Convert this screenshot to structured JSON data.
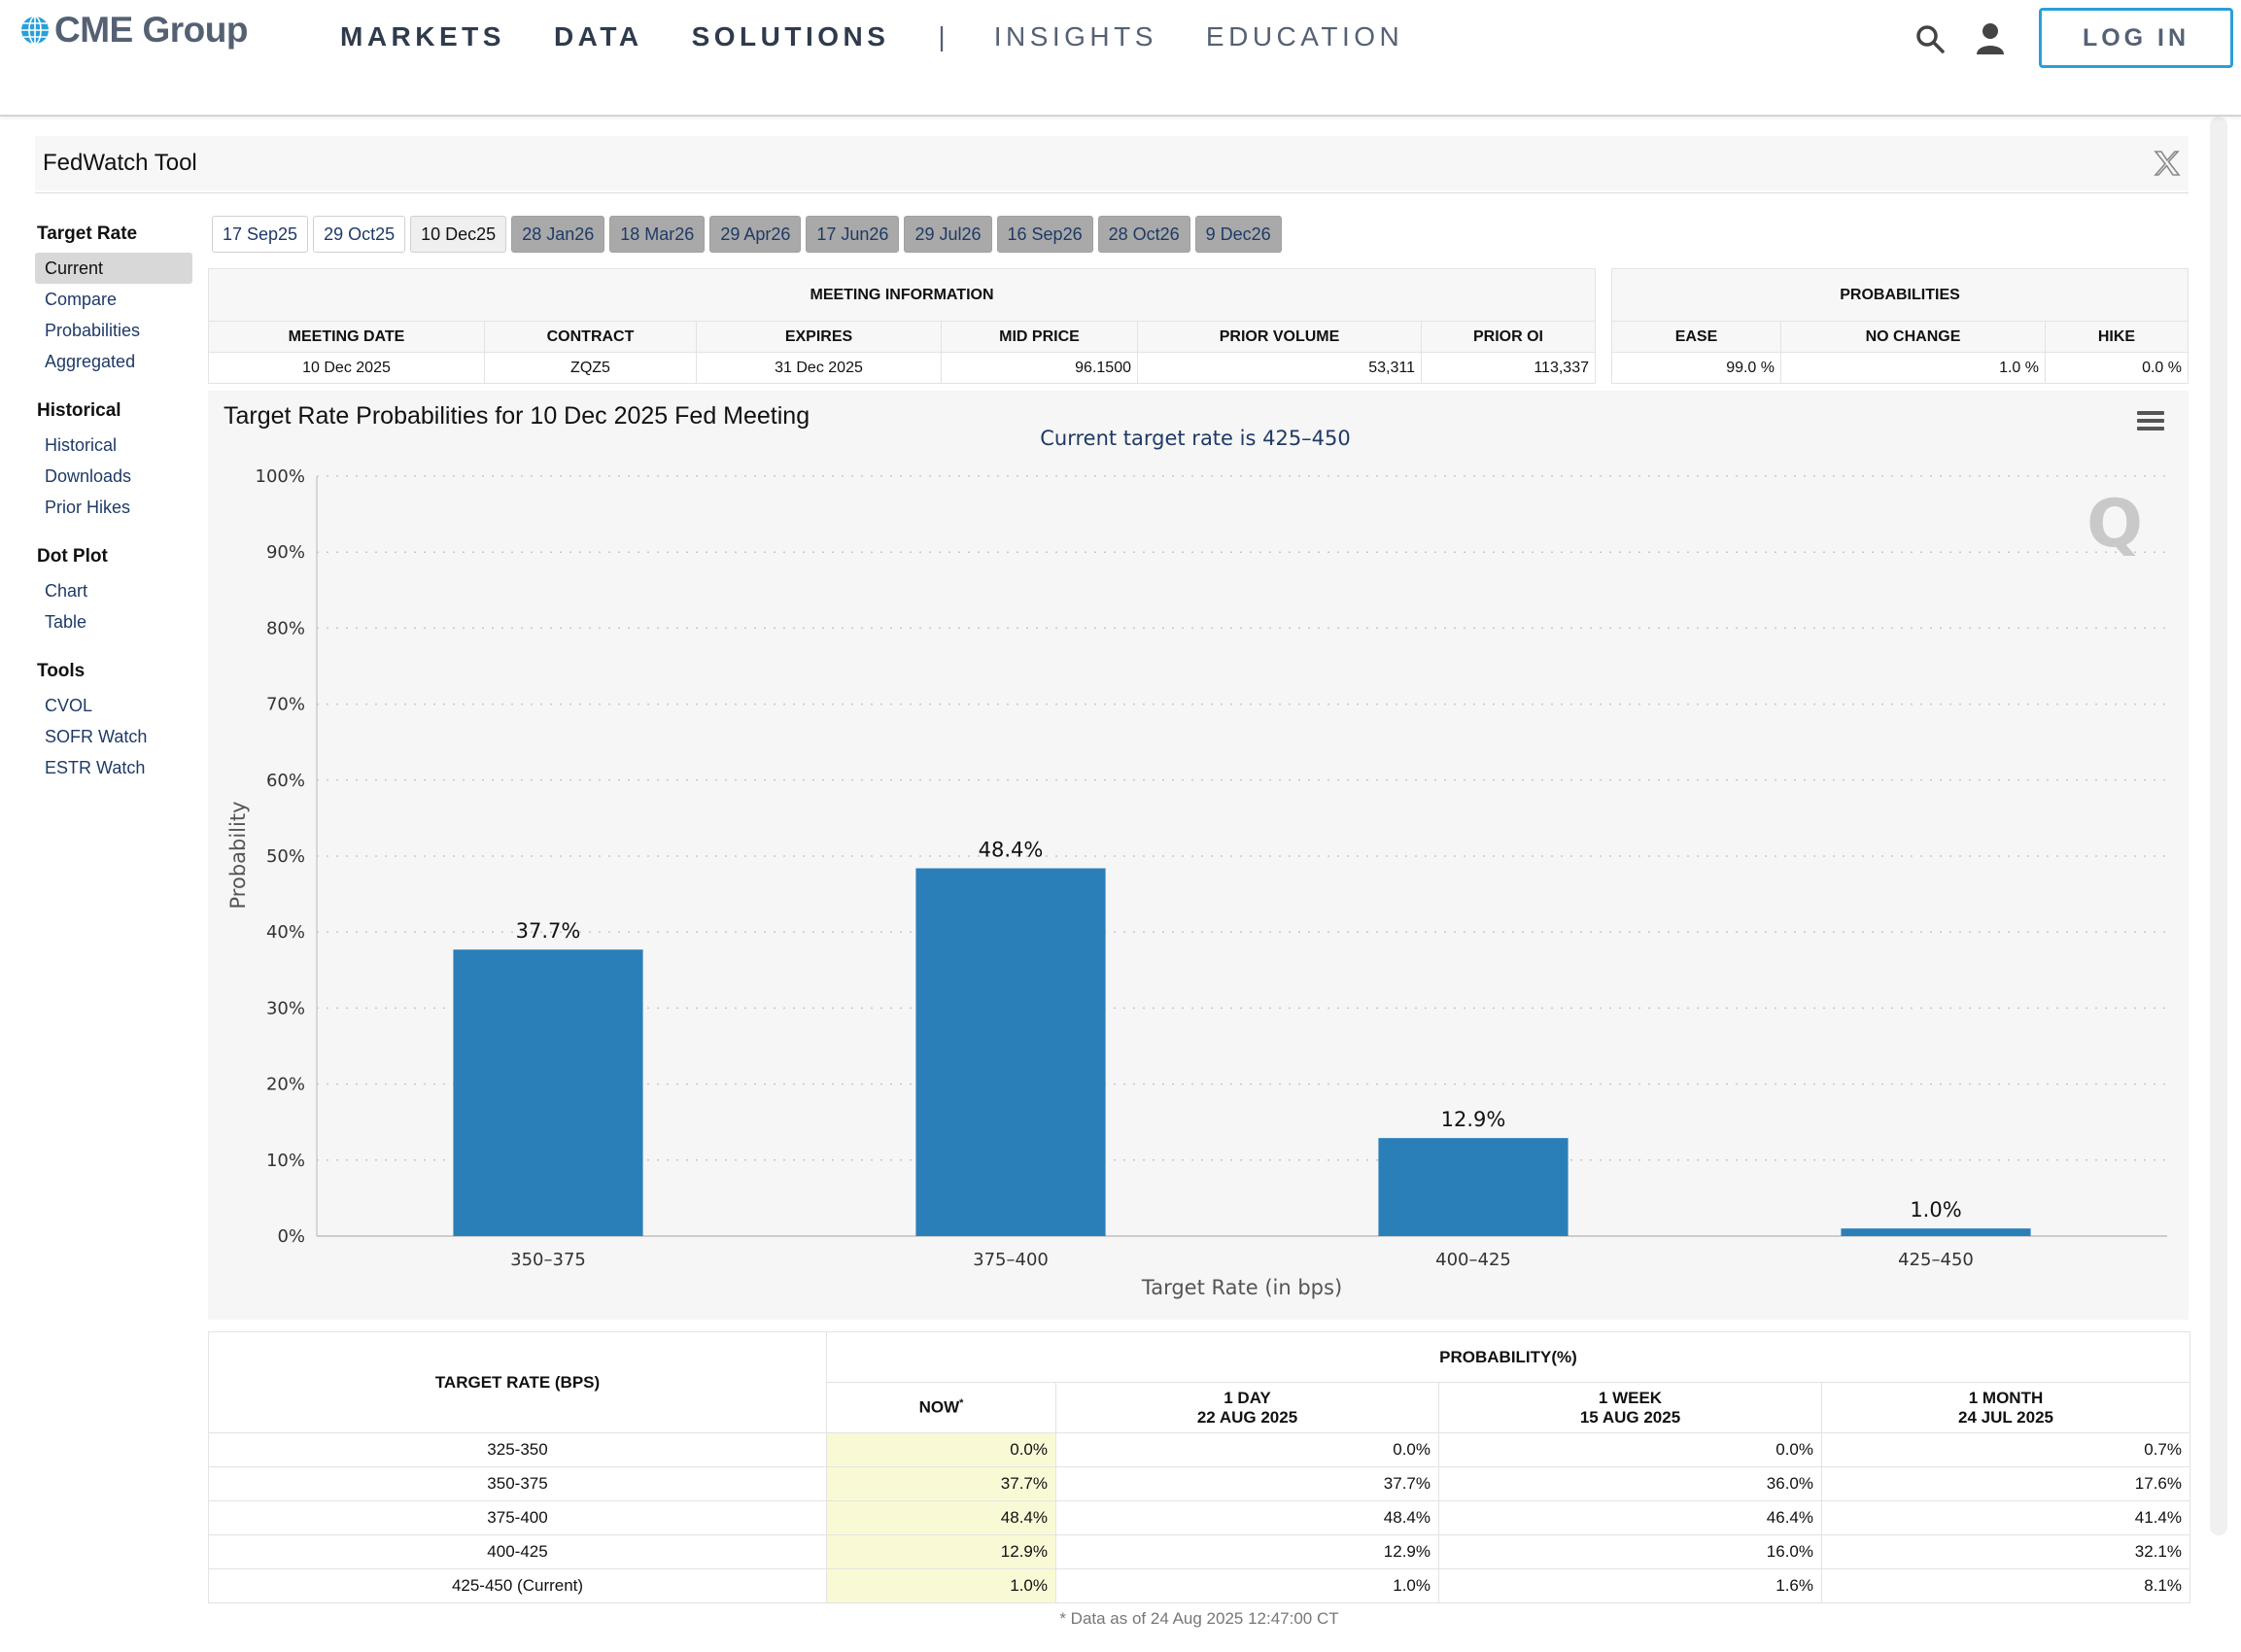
{
  "header": {
    "brand": "CME Group",
    "nav": [
      "MARKETS",
      "DATA",
      "SOLUTIONS",
      "|",
      "INSIGHTS",
      "EDUCATION"
    ],
    "login_label": "LOG IN",
    "colors": {
      "accent": "#2a9fd8",
      "brand": "#556173"
    }
  },
  "tool": {
    "title": "FedWatch Tool"
  },
  "sidebar": {
    "groups": [
      {
        "title": "Target Rate",
        "items": [
          "Current",
          "Compare",
          "Probabilities",
          "Aggregated"
        ]
      },
      {
        "title": "Historical",
        "items": [
          "Historical",
          "Downloads",
          "Prior Hikes"
        ]
      },
      {
        "title": "Dot Plot",
        "items": [
          "Chart",
          "Table"
        ]
      },
      {
        "title": "Tools",
        "items": [
          "CVOL",
          "SOFR Watch",
          "ESTR Watch"
        ]
      }
    ],
    "active": "Current"
  },
  "tabs": [
    "17 Sep25",
    "29 Oct25",
    "10 Dec25",
    "28 Jan26",
    "18 Mar26",
    "29 Apr26",
    "17 Jun26",
    "29 Jul26",
    "16 Sep26",
    "28 Oct26",
    "9 Dec26"
  ],
  "meeting_info": {
    "title": "MEETING INFORMATION",
    "headers": [
      "MEETING DATE",
      "CONTRACT",
      "EXPIRES",
      "MID PRICE",
      "PRIOR VOLUME",
      "PRIOR OI"
    ],
    "row": [
      "10 Dec 2025",
      "ZQZ5",
      "31 Dec 2025",
      "96.1500",
      "53,311",
      "113,337"
    ]
  },
  "probabilities": {
    "title": "PROBABILITIES",
    "headers": [
      "EASE",
      "NO CHANGE",
      "HIKE"
    ],
    "row": [
      "99.0 %",
      "1.0 %",
      "0.0 %"
    ]
  },
  "chart_data": {
    "type": "bar",
    "title": "Target Rate Probabilities for 10 Dec 2025 Fed Meeting",
    "subtitle": "Current target rate is 425–450",
    "categories": [
      "350–375",
      "375–400",
      "400–425",
      "425–450"
    ],
    "values": [
      37.7,
      48.4,
      12.9,
      1.0
    ],
    "data_labels": [
      "37.7%",
      "48.4%",
      "12.9%",
      "1.0%"
    ],
    "xlabel": "Target Rate (in bps)",
    "ylabel": "Probability",
    "ylim": [
      0,
      100
    ],
    "yticks": [
      "0%",
      "10%",
      "20%",
      "30%",
      "40%",
      "50%",
      "60%",
      "70%",
      "80%",
      "90%",
      "100%"
    ],
    "bar_color": "#2b7fb8",
    "grid": true
  },
  "prob_table": {
    "rate_header": "TARGET RATE (BPS)",
    "prob_header": "PROBABILITY(%)",
    "columns": [
      {
        "label": "NOW",
        "sub": ""
      },
      {
        "label": "1 DAY",
        "sub": "22 AUG 2025"
      },
      {
        "label": "1 WEEK",
        "sub": "15 AUG 2025"
      },
      {
        "label": "1 MONTH",
        "sub": "24 JUL 2025"
      }
    ],
    "rows": [
      {
        "rate": "325-350",
        "values": [
          "0.0%",
          "0.0%",
          "0.0%",
          "0.7%"
        ]
      },
      {
        "rate": "350-375",
        "values": [
          "37.7%",
          "37.7%",
          "36.0%",
          "17.6%"
        ]
      },
      {
        "rate": "375-400",
        "values": [
          "48.4%",
          "48.4%",
          "46.4%",
          "41.4%"
        ]
      },
      {
        "rate": "400-425",
        "values": [
          "12.9%",
          "12.9%",
          "16.0%",
          "32.1%"
        ]
      },
      {
        "rate": "425-450 (Current)",
        "values": [
          "1.0%",
          "1.0%",
          "1.6%",
          "8.1%"
        ]
      }
    ],
    "footnote": "* Data as of 24 Aug 2025 12:47:00 CT"
  }
}
